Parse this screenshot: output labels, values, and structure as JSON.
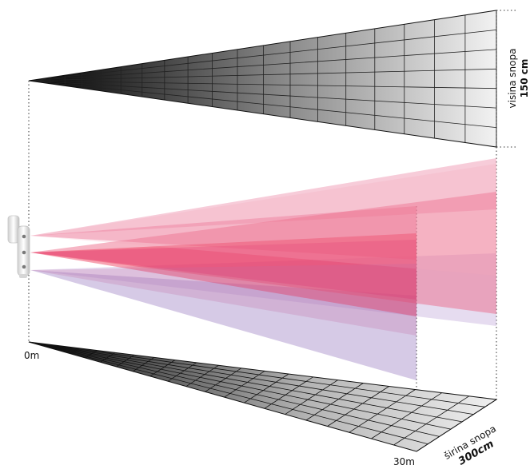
{
  "labels": {
    "start_distance": "0m",
    "end_distance": "30m",
    "height_caption": "visina snopa",
    "height_value": "150 cm",
    "width_caption": "širina snopa",
    "width_value": "300cm"
  },
  "colors": {
    "beam_red": "#ee3355",
    "beam_pink": "#ea6a8e",
    "beam_violet": "#a58ac8",
    "grid_dark": "#111111",
    "grid_light": "#f0f0f0"
  },
  "icons": {
    "sensor": "infrared-beam-sensor-icon"
  }
}
